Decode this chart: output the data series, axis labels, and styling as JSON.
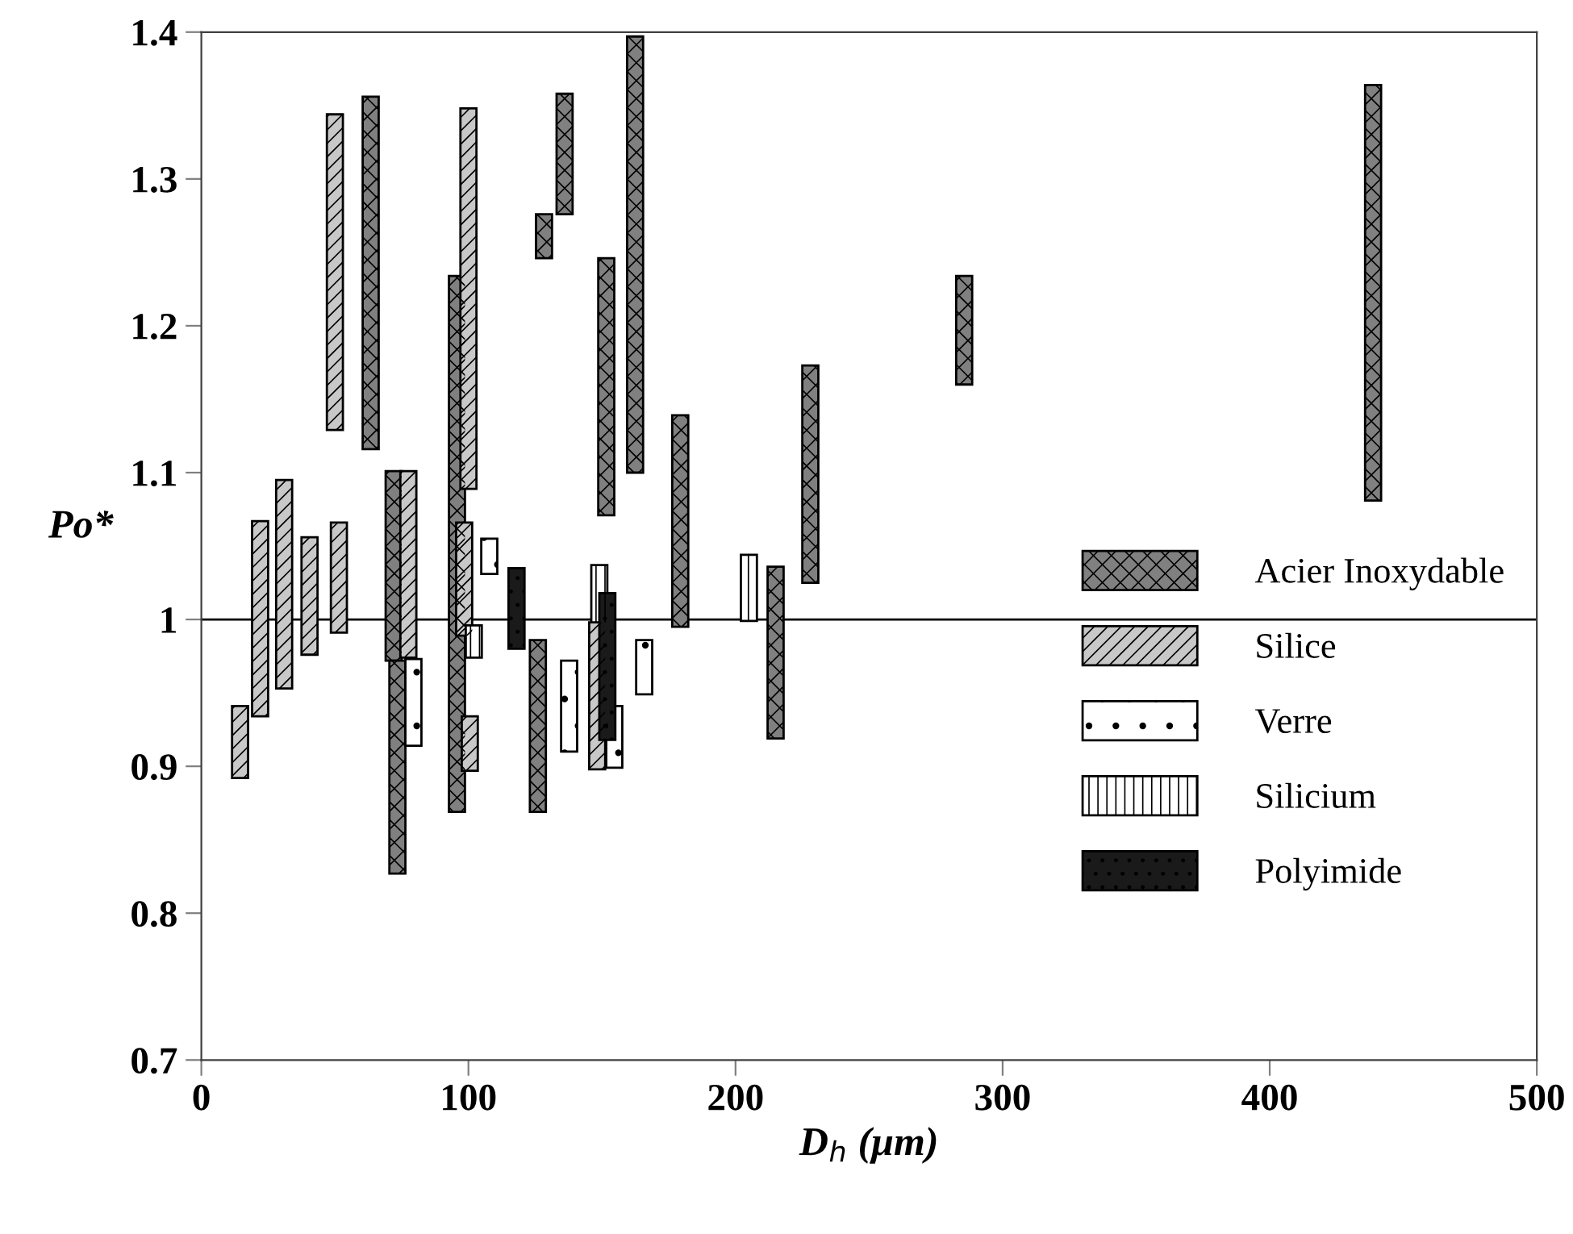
{
  "chart_data": {
    "type": "bar",
    "xlabel": "D$_{h}$ (μm)",
    "ylabel": "Po*",
    "xlim": [
      0,
      500
    ],
    "xticks": [
      0,
      100,
      200,
      300,
      400,
      500
    ],
    "ylim": [
      0.7,
      1.4
    ],
    "yticks": [
      0.7,
      0.8,
      0.9,
      1,
      1.1,
      1.2,
      1.3,
      1.4
    ],
    "grid": false,
    "legend": "right",
    "ref_lines": [
      {
        "axis": "y",
        "value": 1
      }
    ],
    "series": [
      {
        "name": "Acier Inoxydable",
        "color": "#808080",
        "x": [
          63.4,
          72,
          73.4,
          95.7,
          126,
          128.3,
          136,
          151.6,
          162.4,
          179.3,
          215,
          228,
          285.6,
          438.7
        ],
        "base": [
          1.116,
          0.972,
          0.827,
          0.869,
          0.869,
          1.246,
          1.276,
          1.071,
          1.1,
          0.995,
          0.919,
          1.025,
          1.16,
          1.081
        ],
        "values": [
          0.24,
          0.129,
          0.145,
          0.365,
          0.117,
          0.03,
          0.082,
          0.175,
          0.297,
          0.144,
          0.117,
          0.148,
          0.074,
          0.283
        ]
      },
      {
        "name": "Silice",
        "color": "#c8c8c8",
        "x": [
          14.5,
          22,
          31,
          40.5,
          50,
          51.5,
          77.5,
          98.4,
          100,
          100.5,
          148.2
        ],
        "base": [
          0.892,
          0.934,
          0.953,
          0.976,
          1.129,
          0.991,
          0.974,
          0.989,
          1.089,
          0.897,
          0.898
        ],
        "values": [
          0.049,
          0.133,
          0.142,
          0.08,
          0.215,
          0.075,
          0.127,
          0.077,
          0.259,
          0.037,
          0.1
        ]
      },
      {
        "name": "Verre",
        "color": "#ffffff",
        "x": [
          79.4,
          107.8,
          137.7,
          154.6,
          165.8
        ],
        "base": [
          0.914,
          1.031,
          0.91,
          0.899,
          0.949
        ],
        "values": [
          0.059,
          0.024,
          0.062,
          0.042,
          0.037
        ]
      },
      {
        "name": "Silicium",
        "color": "#ffffff",
        "x": [
          102,
          149,
          205
        ],
        "base": [
          0.974,
          0.998,
          0.999
        ],
        "values": [
          0.022,
          0.039,
          0.045
        ]
      },
      {
        "name": "Polyimide",
        "color": "#1a1a1a",
        "x": [
          118,
          152
        ],
        "base": [
          0.98,
          0.918
        ],
        "values": [
          0.055,
          0.1
        ]
      }
    ]
  }
}
